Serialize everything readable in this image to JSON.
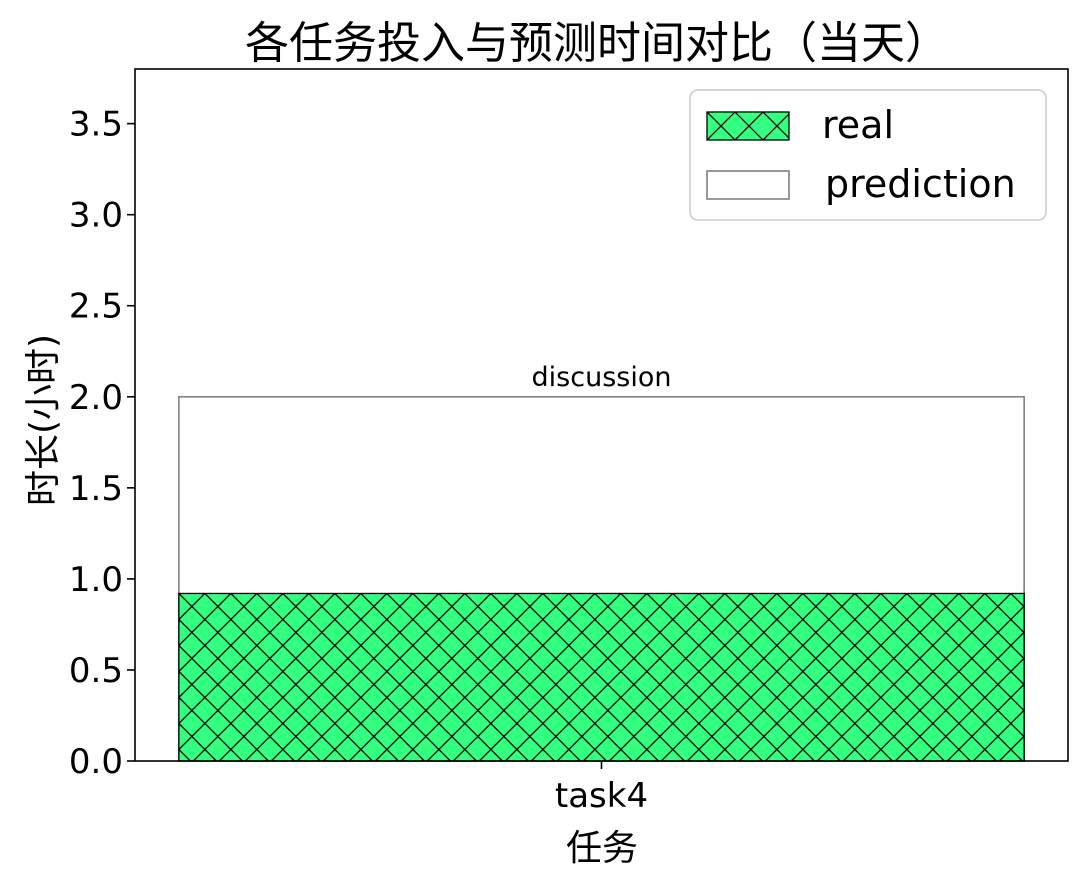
{
  "chart_data": {
    "type": "bar",
    "title": "各任务投入与预测时间对比（当天）",
    "xlabel": "任务",
    "ylabel": "时长(小时)",
    "categories": [
      "task4"
    ],
    "series": [
      {
        "name": "real",
        "values": [
          0.92
        ],
        "color": "#33ff80",
        "hatch": "cross-diagonal",
        "edge_color": "#000000"
      },
      {
        "name": "prediction",
        "values": [
          2.0
        ],
        "color": "#ffffff",
        "edge_color": "#808080"
      }
    ],
    "annotations": [
      {
        "category": "task4",
        "text": "discussion"
      }
    ],
    "ylim": [
      0,
      3.8
    ],
    "yticks": [
      0.0,
      0.5,
      1.0,
      1.5,
      2.0,
      2.5,
      3.0,
      3.5
    ],
    "ytick_labels": [
      "0.0",
      "0.5",
      "1.0",
      "1.5",
      "2.0",
      "2.5",
      "3.0",
      "3.5"
    ],
    "grid": false,
    "legend_position": "top-right"
  }
}
